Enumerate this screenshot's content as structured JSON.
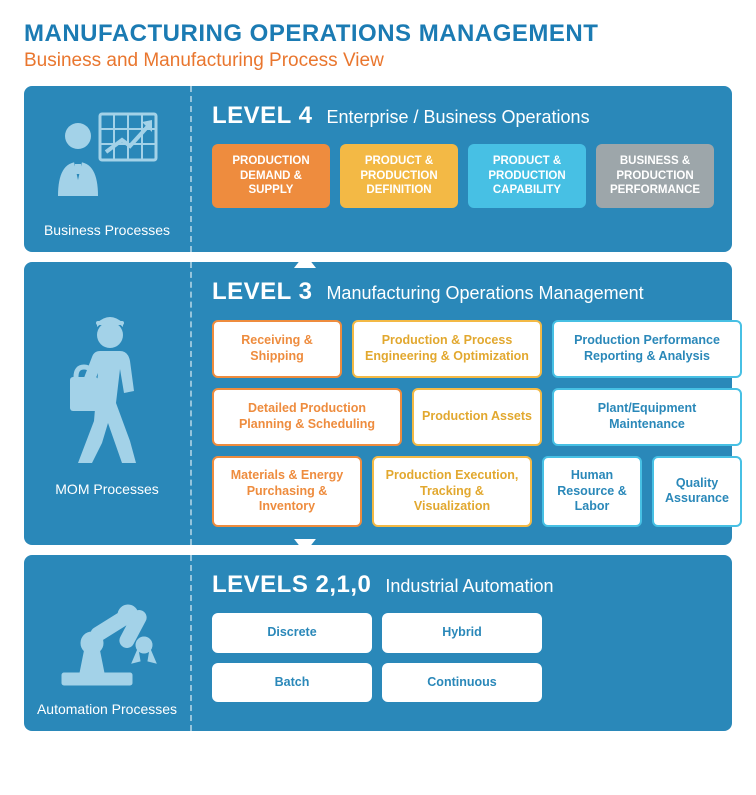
{
  "header": {
    "title": "MANUFACTURING OPERATIONS MANAGEMENT",
    "title_color": "#1b7bb3",
    "subtitle": "Business and Manufacturing Process View",
    "subtitle_color": "#e9762e"
  },
  "palette": {
    "panel_bg": "#2a88b9",
    "icon_fill": "#a3d2e8",
    "orange": "#ee8c3e",
    "yellow": "#f3b945",
    "cyan": "#47c0e4",
    "gray": "#9da6aa",
    "white": "#ffffff"
  },
  "level4": {
    "label": "LEVEL 4",
    "desc": "Enterprise / Business Operations",
    "icon_label": "Business Processes",
    "cards": [
      {
        "text": "PRODUCTION DEMAND & SUPPLY",
        "bg": "#ee8c3e"
      },
      {
        "text": "PRODUCT & PRODUCTION DEFINITION",
        "bg": "#f3b945"
      },
      {
        "text": "PRODUCT & PRODUCTION CAPABILITY",
        "bg": "#47c0e4"
      },
      {
        "text": "BUSINESS & PRODUCTION PERFORMANCE",
        "bg": "#9da6aa"
      }
    ]
  },
  "level3": {
    "label": "LEVEL 3",
    "desc": "Manufacturing Operations Management",
    "icon_label": "MOM Processes",
    "rows": [
      [
        {
          "text": "Receiving & Shipping",
          "border": "#ee8c3e",
          "color": "#ee8c3e",
          "w": 130
        },
        {
          "text": "Production & Process Engineering & Optimization",
          "border": "#f3b945",
          "color": "#e2a82f",
          "w": 190
        },
        {
          "text": "Production Performance Reporting & Analysis",
          "border": "#47c0e4",
          "color": "#2a88b9",
          "w": 190
        }
      ],
      [
        {
          "text": "Detailed Production Planning & Scheduling",
          "border": "#ee8c3e",
          "color": "#ee8c3e",
          "w": 190
        },
        {
          "text": "Production Assets",
          "border": "#f3b945",
          "color": "#e2a82f",
          "w": 130
        },
        {
          "text": "Plant/Equipment Maintenance",
          "border": "#47c0e4",
          "color": "#2a88b9",
          "w": 190
        }
      ],
      [
        {
          "text": "Materials & Energy Purchasing & Inventory",
          "border": "#ee8c3e",
          "color": "#ee8c3e",
          "w": 150
        },
        {
          "text": "Production Execution, Tracking & Visualization",
          "border": "#f3b945",
          "color": "#e2a82f",
          "w": 160
        },
        {
          "text": "Human Resource & Labor",
          "border": "#47c0e4",
          "color": "#2a88b9",
          "w": 100
        },
        {
          "text": "Quality Assurance",
          "border": "#47c0e4",
          "color": "#2a88b9",
          "w": 90
        }
      ]
    ]
  },
  "level210": {
    "label": "LEVELS 2,1,0",
    "desc": "Industrial Automation",
    "icon_label": "Automation Processes",
    "rows": [
      [
        {
          "text": "Discrete",
          "border": "#ffffff",
          "color": "#2a88b9",
          "w": 160
        },
        {
          "text": "Hybrid",
          "border": "#ffffff",
          "color": "#2a88b9",
          "w": 160
        }
      ],
      [
        {
          "text": "Batch",
          "border": "#ffffff",
          "color": "#2a88b9",
          "w": 160
        },
        {
          "text": "Continuous",
          "border": "#ffffff",
          "color": "#2a88b9",
          "w": 160
        }
      ]
    ]
  }
}
